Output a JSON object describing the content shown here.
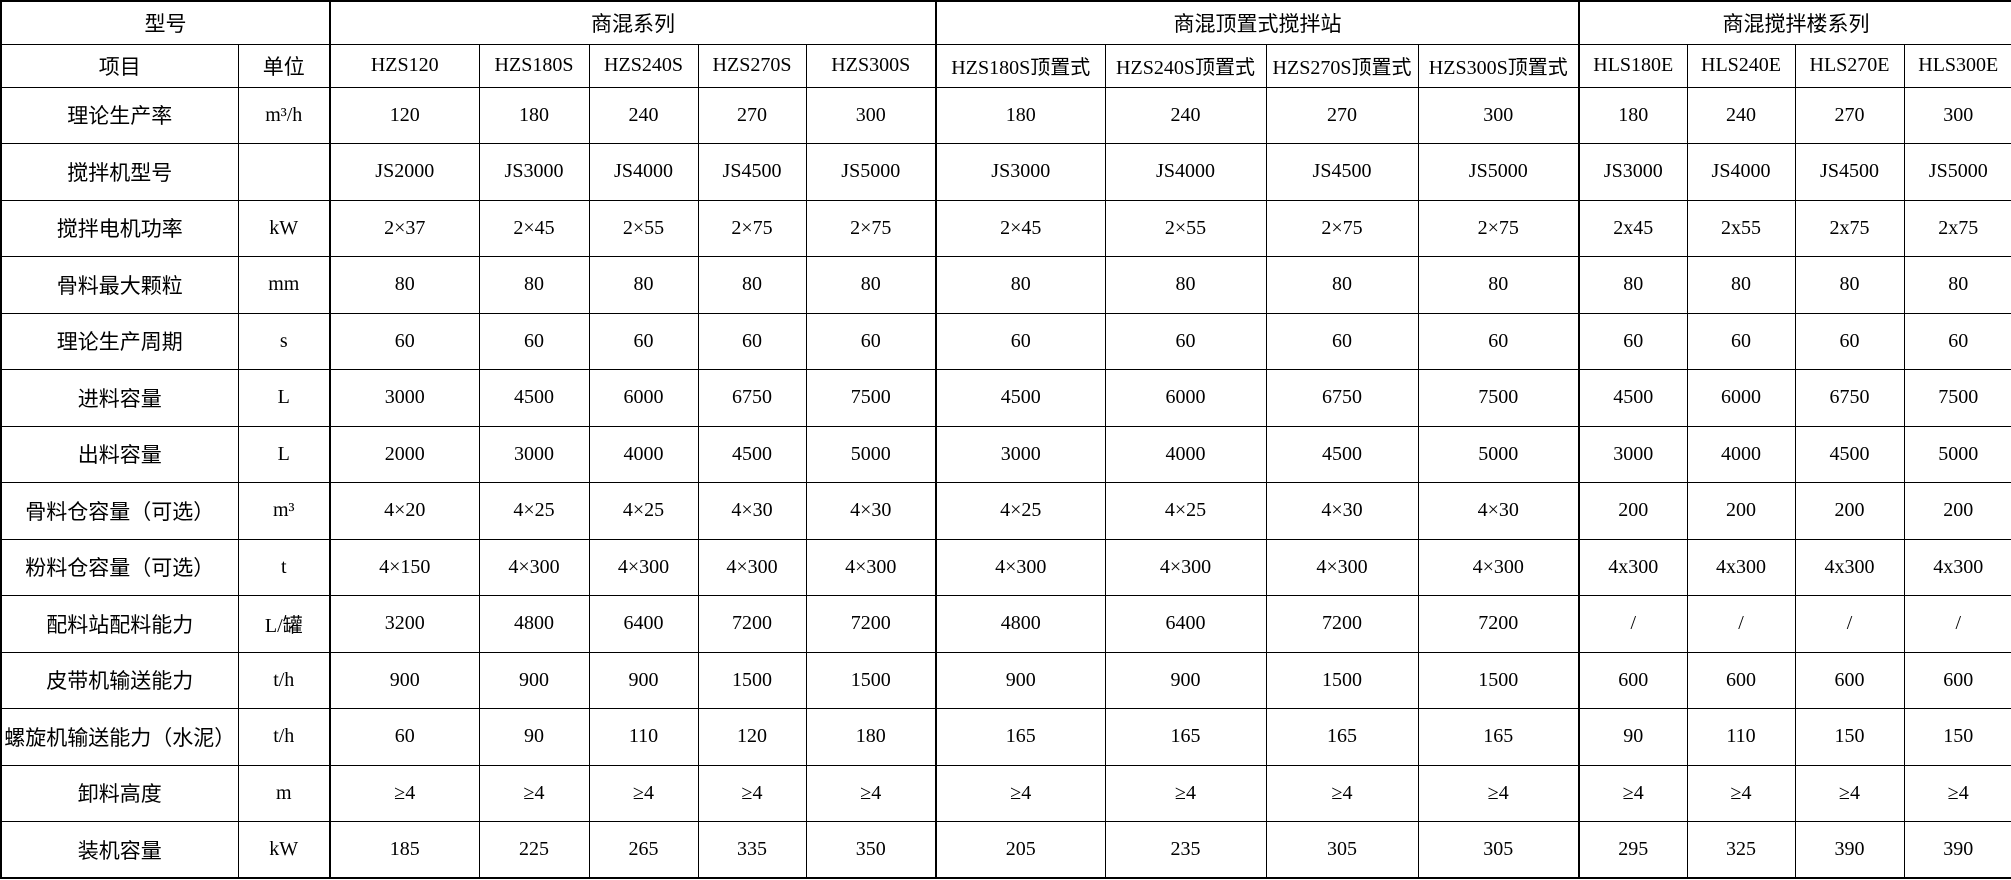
{
  "table": {
    "corner_label": "型号",
    "item_label": "项目",
    "unit_label": "单位",
    "groups": [
      {
        "label": "商混系列",
        "span": 5
      },
      {
        "label": "商混顶置式搅拌站",
        "span": 4
      },
      {
        "label": "商混搅拌楼系列",
        "span": 4
      }
    ],
    "models": [
      "HZS120",
      "HZS180S",
      "HZS240S",
      "HZS270S",
      "HZS300S",
      "HZS180S顶置式",
      "HZS240S顶置式",
      "HZS270S顶置式",
      "HZS300S顶置式",
      "HLS180E",
      "HLS240E",
      "HLS270E",
      "HLS300E"
    ],
    "rows": [
      {
        "item": "理论生产率",
        "unit": "m³/h",
        "values": [
          "120",
          "180",
          "240",
          "270",
          "300",
          "180",
          "240",
          "270",
          "300",
          "180",
          "240",
          "270",
          "300"
        ]
      },
      {
        "item": "搅拌机型号",
        "unit": "",
        "values": [
          "JS2000",
          "JS3000",
          "JS4000",
          "JS4500",
          "JS5000",
          "JS3000",
          "JS4000",
          "JS4500",
          "JS5000",
          "JS3000",
          "JS4000",
          "JS4500",
          "JS5000"
        ]
      },
      {
        "item": "搅拌电机功率",
        "unit": "kW",
        "values": [
          "2×37",
          "2×45",
          "2×55",
          "2×75",
          "2×75",
          "2×45",
          "2×55",
          "2×75",
          "2×75",
          "2x45",
          "2x55",
          "2x75",
          "2x75"
        ]
      },
      {
        "item": "骨料最大颗粒",
        "unit": "mm",
        "values": [
          "80",
          "80",
          "80",
          "80",
          "80",
          "80",
          "80",
          "80",
          "80",
          "80",
          "80",
          "80",
          "80"
        ]
      },
      {
        "item": "理论生产周期",
        "unit": "s",
        "values": [
          "60",
          "60",
          "60",
          "60",
          "60",
          "60",
          "60",
          "60",
          "60",
          "60",
          "60",
          "60",
          "60"
        ]
      },
      {
        "item": "进料容量",
        "unit": "L",
        "values": [
          "3000",
          "4500",
          "6000",
          "6750",
          "7500",
          "4500",
          "6000",
          "6750",
          "7500",
          "4500",
          "6000",
          "6750",
          "7500"
        ]
      },
      {
        "item": "出料容量",
        "unit": "L",
        "values": [
          "2000",
          "3000",
          "4000",
          "4500",
          "5000",
          "3000",
          "4000",
          "4500",
          "5000",
          "3000",
          "4000",
          "4500",
          "5000"
        ]
      },
      {
        "item": "骨料仓容量（可选）",
        "unit": "m³",
        "values": [
          "4×20",
          "4×25",
          "4×25",
          "4×30",
          "4×30",
          "4×25",
          "4×25",
          "4×30",
          "4×30",
          "200",
          "200",
          "200",
          "200"
        ]
      },
      {
        "item": "粉料仓容量（可选）",
        "unit": "t",
        "values": [
          "4×150",
          "4×300",
          "4×300",
          "4×300",
          "4×300",
          "4×300",
          "4×300",
          "4×300",
          "4×300",
          "4x300",
          "4x300",
          "4x300",
          "4x300"
        ]
      },
      {
        "item": "配料站配料能力",
        "unit": "L/罐",
        "values": [
          "3200",
          "4800",
          "6400",
          "7200",
          "7200",
          "4800",
          "6400",
          "7200",
          "7200",
          "/",
          "/",
          "/",
          "/"
        ]
      },
      {
        "item": "皮带机输送能力",
        "unit": "t/h",
        "values": [
          "900",
          "900",
          "900",
          "1500",
          "1500",
          "900",
          "900",
          "1500",
          "1500",
          "600",
          "600",
          "600",
          "600"
        ]
      },
      {
        "item": "螺旋机输送能力（水泥）",
        "unit": "t/h",
        "values": [
          "60",
          "90",
          "110",
          "120",
          "180",
          "165",
          "165",
          "165",
          "165",
          "90",
          "110",
          "150",
          "150"
        ]
      },
      {
        "item": "卸料高度",
        "unit": "m",
        "values": [
          "≥4",
          "≥4",
          "≥4",
          "≥4",
          "≥4",
          "≥4",
          "≥4",
          "≥4",
          "≥4",
          "≥4",
          "≥4",
          "≥4",
          "≥4"
        ]
      },
      {
        "item": "装机容量",
        "unit": "kW",
        "values": [
          "185",
          "225",
          "265",
          "335",
          "350",
          "205",
          "235",
          "305",
          "305",
          "295",
          "325",
          "390",
          "390"
        ]
      }
    ]
  }
}
